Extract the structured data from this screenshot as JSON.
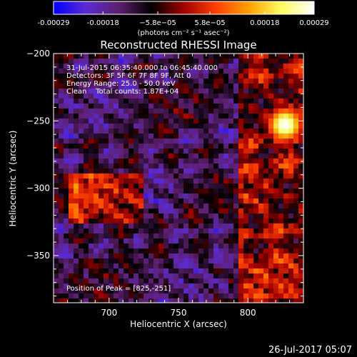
{
  "colorbar": {
    "tick_labels": [
      "-0.00029",
      "-0.00018",
      "−5.8e−05",
      "5.8e−05",
      "0.00018",
      "0.00029"
    ],
    "tick_values": [
      -0.00029,
      -0.00018,
      -5.8e-05,
      5.8e-05,
      0.00018,
      0.00029
    ],
    "range": [
      -0.00029,
      0.00029
    ],
    "units_label": "(photons cm⁻² s⁻¹ asec⁻²)",
    "colors": [
      "#0000ff",
      "#5b2bd0",
      "#5e1f6f",
      "#000000",
      "#a00000",
      "#ff4000",
      "#ffa000",
      "#ffff60",
      "#ffffff"
    ]
  },
  "chart_data": {
    "type": "heatmap",
    "title": "Reconstructed RHESSI Image",
    "xlabel": "Heliocentric X (arcsec)",
    "ylabel": "Heliocentric Y (arcsec)",
    "xlim": [
      660,
      840
    ],
    "ylim": [
      -385,
      -200
    ],
    "x_ticks": [
      700,
      750,
      800
    ],
    "y_ticks": [
      -200,
      -250,
      -300,
      -350
    ],
    "x_tick_labels": [
      "700",
      "750",
      "800"
    ],
    "y_tick_labels": [
      "−200",
      "−250",
      "−300",
      "−350"
    ],
    "peak": [
      825,
      -251
    ],
    "annotations": [
      "31-Jul-2015 06:35:40.000 to 06:45:40.000",
      "Detectors: 3F 5F 6F 7F 8F 9F, Att 0",
      "Energy Range: 25.0 - 50.0 keV",
      "Clean    Total counts: 1.87E+04"
    ],
    "peak_label": "Position of Peak = [825,-251]"
  },
  "footer": {
    "timestamp": "26-Jul-2017 05:07"
  }
}
